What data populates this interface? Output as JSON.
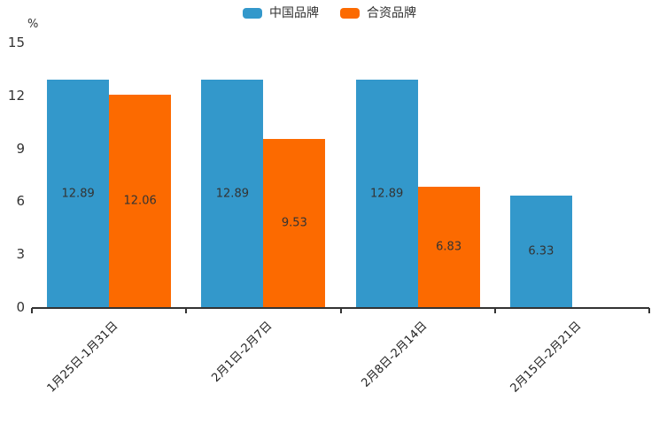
{
  "chart_data": {
    "type": "bar",
    "title": "",
    "ylabel": "%",
    "categories": [
      "1月25日-1月31日",
      "2月1日-2月7日",
      "2月8日-2月14日",
      "2月15日-2月21日"
    ],
    "series": [
      {
        "name": "中国品牌",
        "color": "#3398cb",
        "values": [
          12.89,
          12.89,
          12.89,
          6.33
        ]
      },
      {
        "name": "合资品牌",
        "color": "#fc6a00",
        "values": [
          12.06,
          9.53,
          6.83,
          null
        ]
      }
    ],
    "ylim": [
      0,
      15
    ],
    "yticks": [
      0,
      3,
      6,
      9,
      12,
      15
    ],
    "legend_position": "top-center",
    "grid": false,
    "value_labels": "inside-center",
    "value_label_decimals": 2,
    "value_label_color": "#333333",
    "axis_color": "#333333",
    "xlabel_rotation_deg": 45
  }
}
